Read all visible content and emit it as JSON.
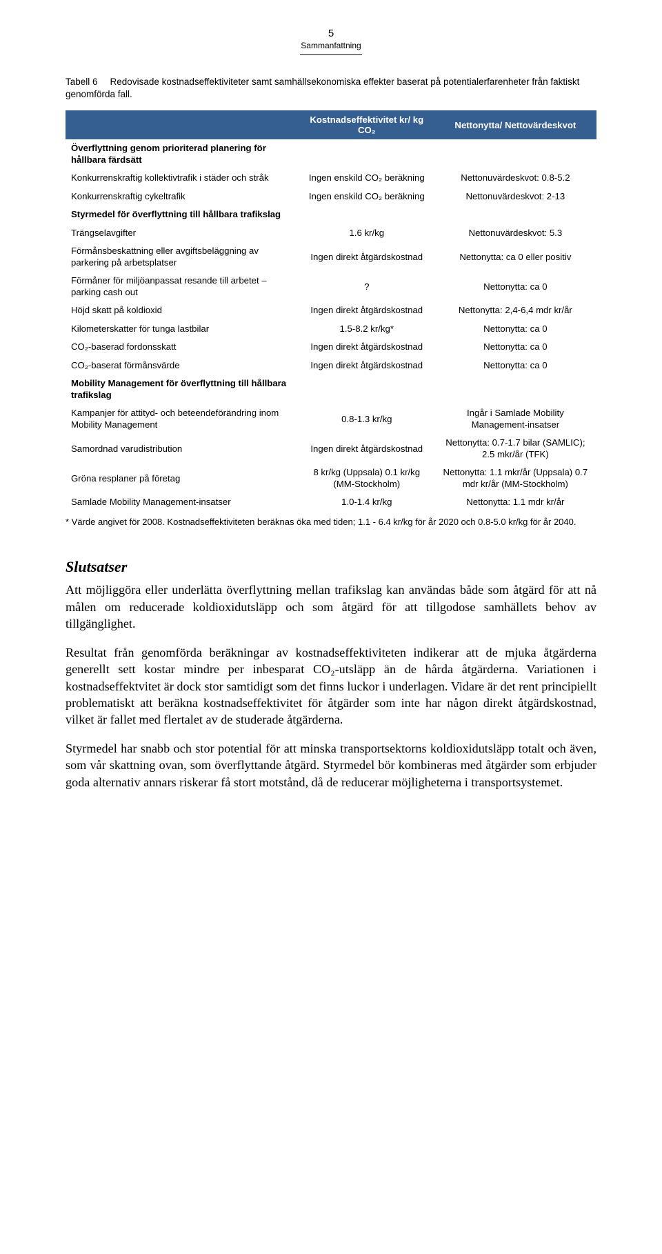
{
  "colors": {
    "header_bg": "#365f91",
    "header_fg": "#ffffff",
    "page_bg": "#ffffff",
    "text": "#000000"
  },
  "page_number": "5",
  "section_mini": "Sammanfattning",
  "caption_label": "Tabell 6",
  "caption_text": "Redovisade kostnadseffektiviteter samt samhällsekonomiska effekter baserat på potentialerfarenheter från faktiskt genomförda fall.",
  "header_col1": "",
  "header_col2": "Kostnadseffektivitet kr/ kg CO₂",
  "header_col3": "Nettonytta/ Nettovärdeskvot",
  "rows": [
    {
      "type": "section",
      "c1": "Överflyttning genom prioriterad planering för hållbara färdsätt",
      "c2": "",
      "c3": ""
    },
    {
      "type": "data",
      "c1": "Konkurrenskraftig kollektivtrafik i städer och stråk",
      "c2": "Ingen enskild CO₂ beräkning",
      "c3": "Nettonuvärdeskvot: 0.8-5.2"
    },
    {
      "type": "data",
      "c1": "Konkurrenskraftig cykeltrafik",
      "c2": "Ingen enskild CO₂ beräkning",
      "c3": "Nettonuvärdeskvot: 2-13"
    },
    {
      "type": "section",
      "c1": "Styrmedel för överflyttning till hållbara trafikslag",
      "c2": "",
      "c3": ""
    },
    {
      "type": "data",
      "c1": "Trängselavgifter",
      "c2": "1.6 kr/kg",
      "c3": "Nettonuvärdeskvot: 5.3"
    },
    {
      "type": "data",
      "c1": "Förmånsbeskattning eller avgiftsbeläggning av parkering på arbetsplatser",
      "c2": "Ingen direkt åtgärdskostnad",
      "c3": "Nettonytta: ca 0 eller positiv"
    },
    {
      "type": "data",
      "c1": "Förmåner för miljöanpassat resande till arbetet – parking cash out",
      "c2": "?",
      "c3": "Nettonytta: ca 0"
    },
    {
      "type": "data",
      "c1": "Höjd skatt på koldioxid",
      "c2": "Ingen direkt åtgärdskostnad",
      "c3": "Nettonytta: 2,4-6,4 mdr kr/år"
    },
    {
      "type": "data",
      "c1": "Kilometerskatter för tunga lastbilar",
      "c2": "1.5-8.2 kr/kg*",
      "c3": "Nettonytta: ca 0"
    },
    {
      "type": "data",
      "c1": "CO₂-baserad fordonsskatt",
      "c2": "Ingen direkt åtgärdskostnad",
      "c3": "Nettonytta: ca 0"
    },
    {
      "type": "data",
      "c1": "CO₂-baserat förmånsvärde",
      "c2": "Ingen direkt åtgärdskostnad",
      "c3": "Nettonytta: ca 0"
    },
    {
      "type": "section",
      "c1": "Mobility Management för överflyttning till hållbara trafikslag",
      "c2": "",
      "c3": ""
    },
    {
      "type": "data",
      "c1": "Kampanjer för attityd- och beteendeförändring inom Mobility Management",
      "c2": "0.8-1.3 kr/kg",
      "c3": "Ingår i Samlade Mobility Management-insatser"
    },
    {
      "type": "data",
      "c1": "Samordnad varudistribution",
      "c2": "Ingen direkt åtgärdskostnad",
      "c3": "Nettonytta: 0.7-1.7 bilar (SAMLIC); 2.5 mkr/år (TFK)"
    },
    {
      "type": "data",
      "c1": "Gröna resplaner på företag",
      "c2": "8 kr/kg (Uppsala) 0.1 kr/kg (MM-Stockholm)",
      "c3": "Nettonytta: 1.1 mkr/år (Uppsala) 0.7 mdr kr/år (MM-Stockholm)"
    },
    {
      "type": "data",
      "c1": "Samlade Mobility Management-insatser",
      "c2": "1.0-1.4 kr/kg",
      "c3": "Nettonytta: 1.1 mdr kr/år"
    }
  ],
  "footnote": "* Värde angivet för 2008. Kostnadseffektiviteten beräknas öka med tiden; 1.1 - 6.4 kr/kg för år 2020 och 0.8-5.0 kr/kg för år 2040.",
  "heading2": "Slutsatser",
  "para1": "Att möjliggöra eller underlätta överflyttning mellan trafikslag kan användas både som åtgärd för att nå målen om reducerade koldioxidutsläpp och som åtgärd för att tillgodose samhällets behov av tillgänglighet.",
  "para2": "Resultat från genomförda beräkningar av kostnadseffektiviteten indikerar att de mjuka åtgärderna generellt sett kostar mindre per inbesparat CO₂-utsläpp än de hårda åtgärderna. Variationen i kostnadseffektvitet är dock stor samtidigt som det finns luckor i underlagen. Vidare är det rent principiellt problematiskt att beräkna kostnadseffektivitet för åtgärder som inte har någon direkt åtgärdskostnad, vilket är fallet med flertalet av de studerade åtgärderna.",
  "para3": "Styrmedel har snabb och stor potential för att minska transportsektorns koldioxidutsläpp totalt och även, som vår skattning ovan, som överflyttande åtgärd. Styrmedel bör kombineras med åtgärder som erbjuder goda alternativ annars riskerar få stort motstånd, då de reducerar möjligheterna i transportsystemet."
}
